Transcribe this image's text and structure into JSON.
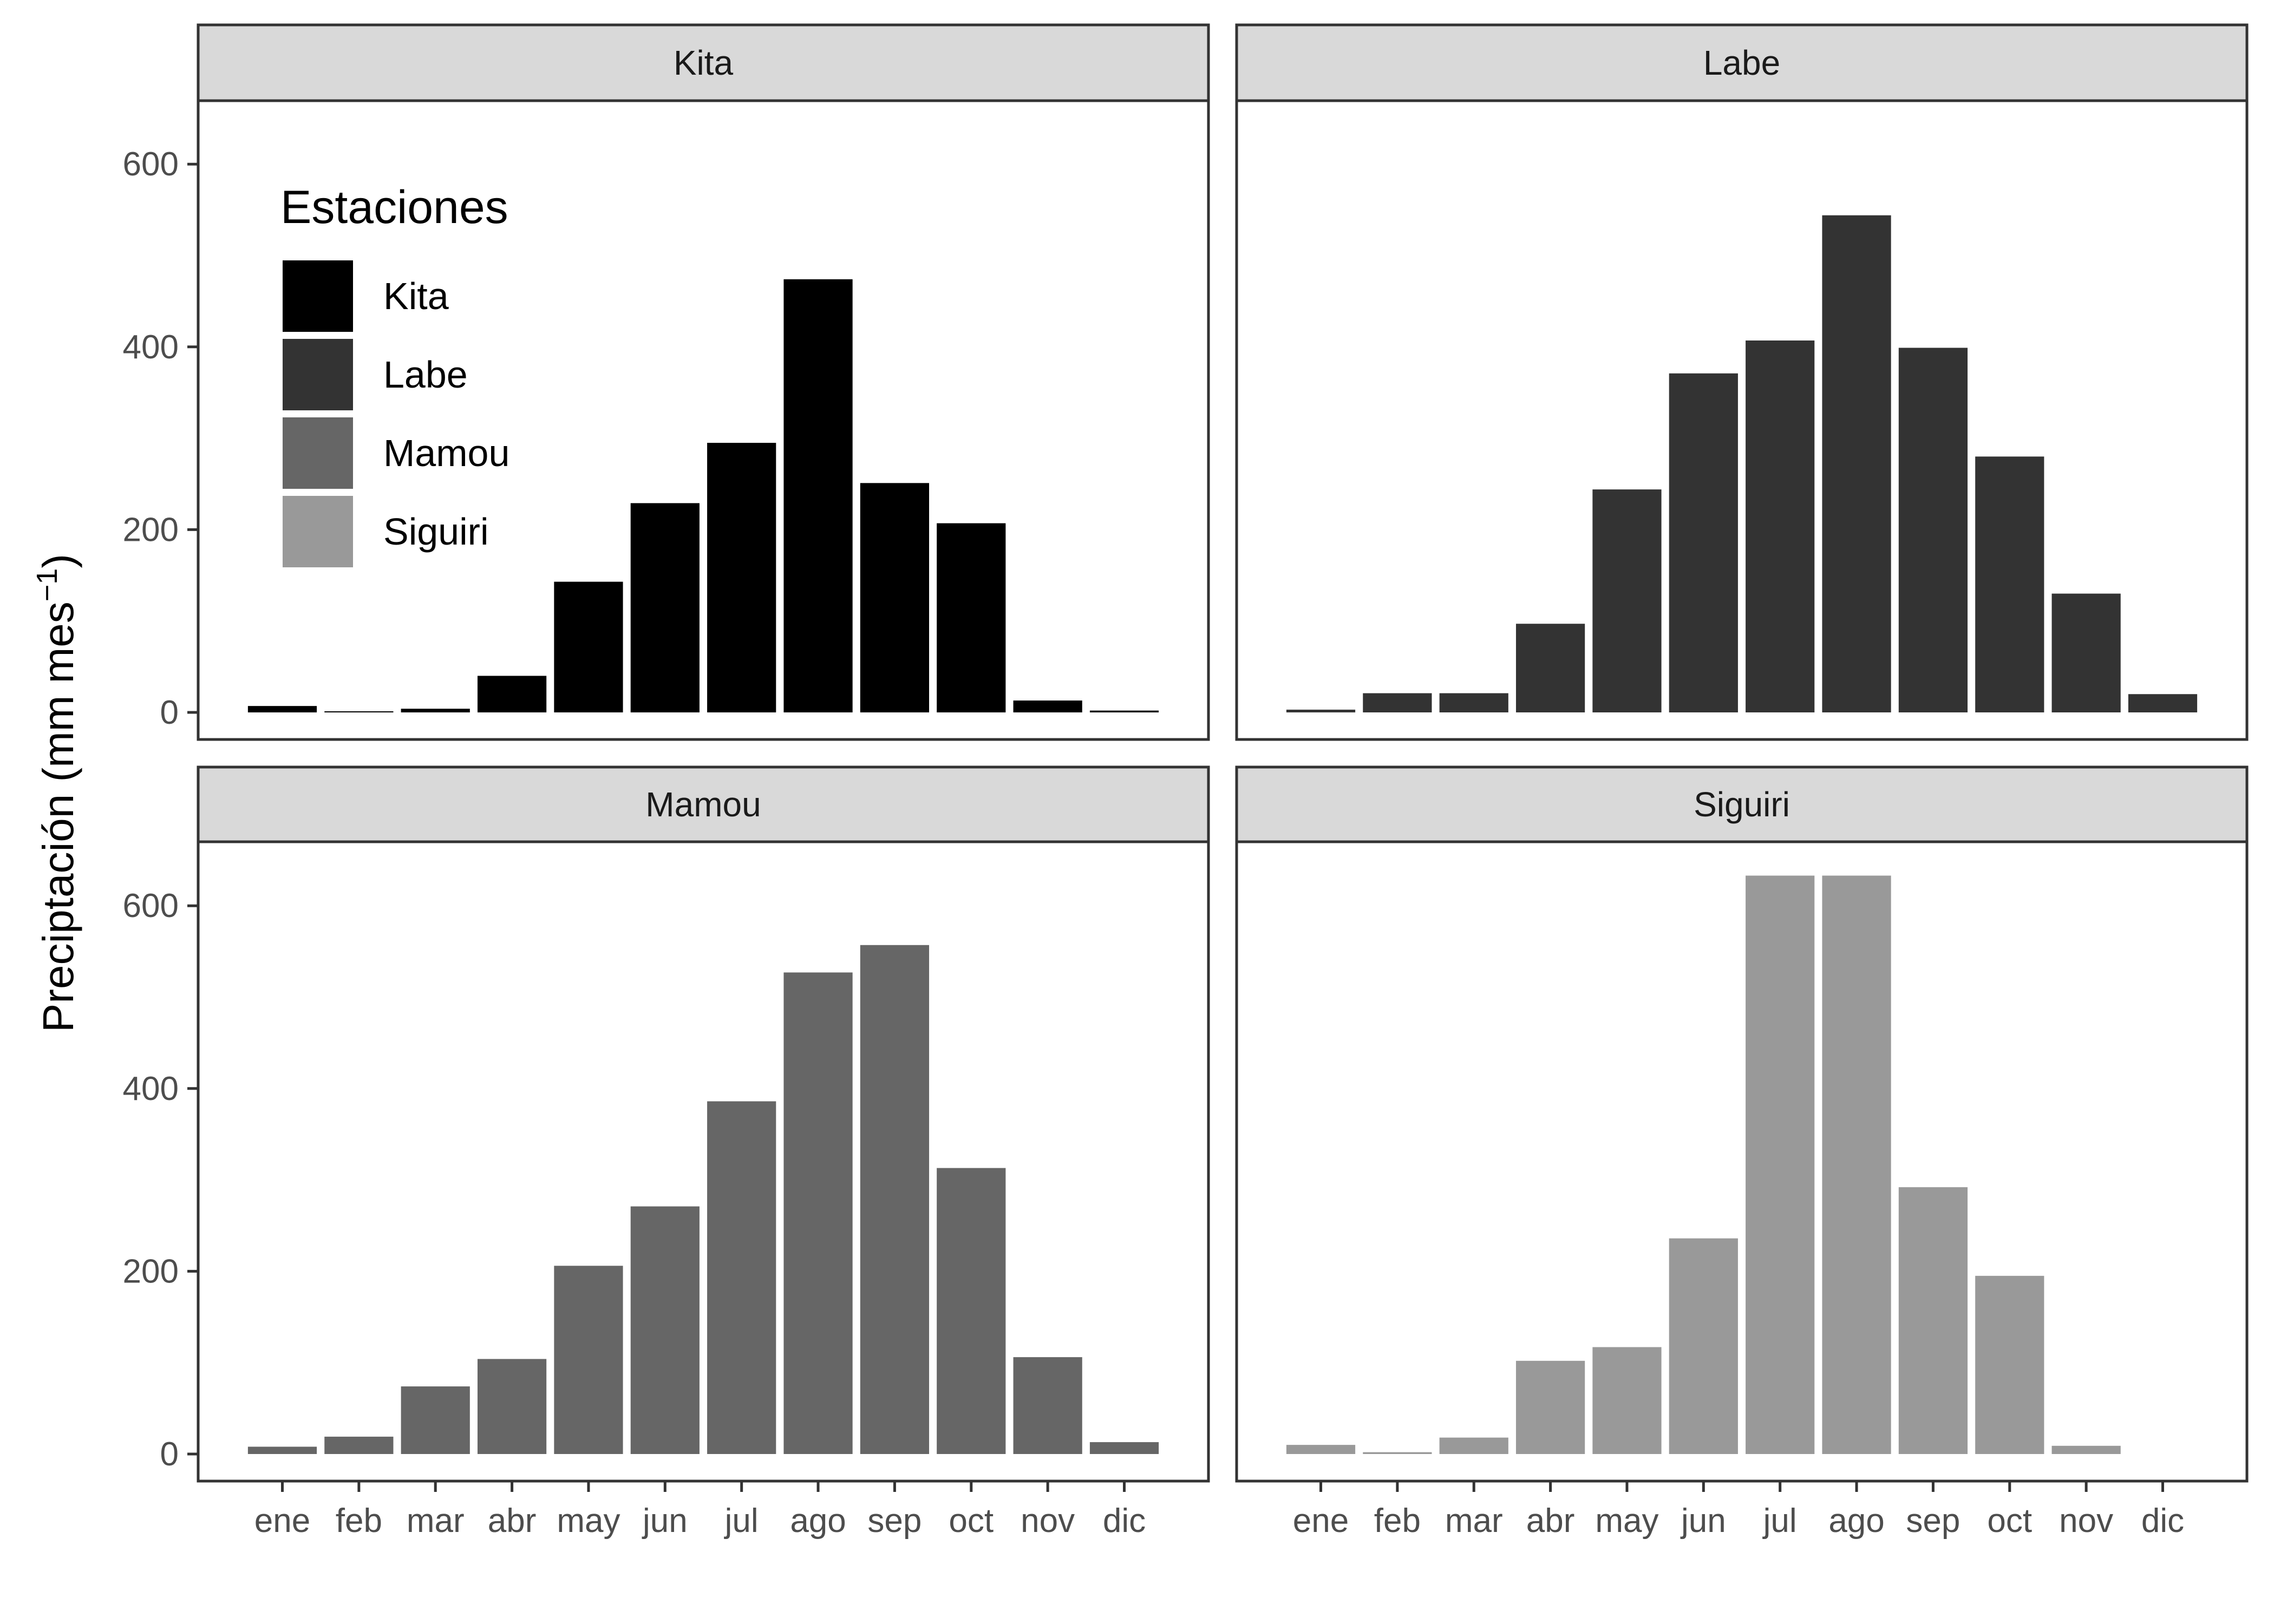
{
  "chart_data": {
    "type": "bar",
    "layout": "facet-grid-2x2",
    "ylabel": "Preciptación (mm mes",
    "ylabel_superscript": "−1",
    "ylabel_close": ")",
    "xlabel": "",
    "categories": [
      "ene",
      "feb",
      "mar",
      "abr",
      "may",
      "jun",
      "jul",
      "ago",
      "sep",
      "oct",
      "nov",
      "dic"
    ],
    "ylim": [
      0,
      700
    ],
    "yticks": [
      0,
      200,
      400,
      600
    ],
    "grid": false,
    "legend": {
      "title": "Estaciones",
      "placement": "inside top-left of first panel",
      "items": [
        {
          "label": "Kita",
          "color": "#000000"
        },
        {
          "label": "Labe",
          "color": "#333333"
        },
        {
          "label": "Mamou",
          "color": "#666666"
        },
        {
          "label": "Siguiri",
          "color": "#999999"
        }
      ]
    },
    "series": [
      {
        "name": "Kita",
        "color": "#000000",
        "values": [
          7,
          1,
          4,
          40,
          143,
          229,
          295,
          474,
          251,
          207,
          13,
          2
        ]
      },
      {
        "name": "Labe",
        "color": "#333333",
        "values": [
          3,
          21,
          21,
          97,
          244,
          371,
          407,
          544,
          399,
          280,
          130,
          20
        ]
      },
      {
        "name": "Mamou",
        "color": "#666666",
        "values": [
          8,
          19,
          74,
          104,
          206,
          271,
          386,
          527,
          557,
          313,
          106,
          13
        ]
      },
      {
        "name": "Siguiri",
        "color": "#999999",
        "values": [
          10,
          2,
          18,
          102,
          117,
          236,
          633,
          633,
          292,
          195,
          9,
          0
        ]
      }
    ]
  }
}
